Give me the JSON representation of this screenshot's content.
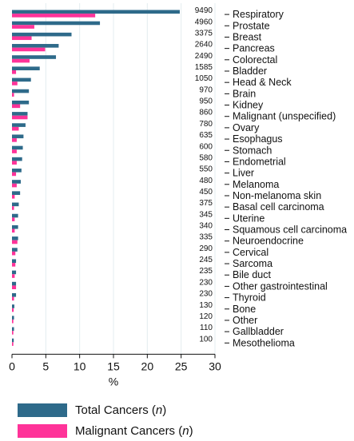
{
  "chart_data": {
    "type": "bar",
    "orientation": "horizontal",
    "xlabel": "%",
    "xlim": [
      0,
      30
    ],
    "xticks": [
      0,
      5,
      10,
      15,
      20,
      25,
      30
    ],
    "grid": "vertical",
    "legend_placement": "bottom-left",
    "categories": [
      "Respiratory",
      "Prostate",
      "Breast",
      "Pancreas",
      "Colorectal",
      "Bladder",
      "Head & Neck",
      "Brain",
      "Kidney",
      "Malignant (unspecified)",
      "Ovary",
      "Esophagus",
      "Stomach",
      "Endometrial",
      "Liver",
      "Melanoma",
      "Non-melanoma skin",
      "Basal cell carcinoma",
      "Uterine",
      "Squamous cell carcinoma",
      "Neuroendocrine",
      "Cervical",
      "Sarcoma",
      "Bile duct",
      "Other gastrointestinal",
      "Thyroid",
      "Bone",
      "Other",
      "Gallbladder",
      "Mesothelioma"
    ],
    "counts": [
      "9490",
      "4960",
      "3375",
      "2640",
      "2490",
      "1585",
      "1050",
      "970",
      "950",
      "860",
      "780",
      "635",
      "600",
      "580",
      "550",
      "480",
      "450",
      "375",
      "345",
      "340",
      "335",
      "290",
      "245",
      "235",
      "230",
      "230",
      "130",
      "120",
      "110",
      "100"
    ],
    "series": [
      {
        "name": "Total Cancers (n)",
        "color": "#2e6a8a",
        "values": [
          24.8,
          13.0,
          8.8,
          6.9,
          6.5,
          4.1,
          2.8,
          2.5,
          2.5,
          2.3,
          2.0,
          1.7,
          1.6,
          1.5,
          1.4,
          1.3,
          1.2,
          1.0,
          0.9,
          0.9,
          0.9,
          0.8,
          0.6,
          0.6,
          0.6,
          0.6,
          0.35,
          0.3,
          0.3,
          0.26
        ]
      },
      {
        "name": "Malignant Cancers (n)",
        "color": "#ff3399",
        "values": [
          12.3,
          3.3,
          2.9,
          4.9,
          2.6,
          0.6,
          0.8,
          0.3,
          1.2,
          2.3,
          1.0,
          0.7,
          0.7,
          0.7,
          0.6,
          0.7,
          0.4,
          0.3,
          0.4,
          0.4,
          0.8,
          0.5,
          0.5,
          0.4,
          0.6,
          0.3,
          0.25,
          0.2,
          0.2,
          0.2
        ]
      }
    ]
  },
  "legend": {
    "items": [
      {
        "text": "Total Cancers (",
        "italic": "n",
        "close": ")",
        "color": "#2e6a8a"
      },
      {
        "text": "Malignant Cancers (",
        "italic": "n",
        "close": ")",
        "color": "#ff3399"
      }
    ]
  }
}
